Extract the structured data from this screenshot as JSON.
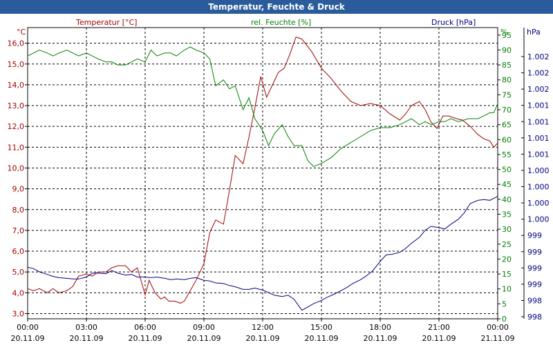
{
  "window": {
    "title": "Temperatur, Feuchte & Druck"
  },
  "chart_data": {
    "type": "line",
    "title": "Temperatur, Feuchte & Druck",
    "x_ticks": [
      {
        "time": "00:00",
        "date": "20.11.09"
      },
      {
        "time": "03:00",
        "date": "20.11.09"
      },
      {
        "time": "06:00",
        "date": "20.11.09"
      },
      {
        "time": "09:00",
        "date": "20.11.09"
      },
      {
        "time": "12:00",
        "date": "20.11.09"
      },
      {
        "time": "15:00",
        "date": "20.11.09"
      },
      {
        "time": "18:00",
        "date": "20.11.09"
      },
      {
        "time": "21:00",
        "date": "20.11.09"
      },
      {
        "time": "00:00",
        "date": "21.11.09"
      }
    ],
    "xlim": [
      0,
      24
    ],
    "grid": true,
    "axes": {
      "temp": {
        "label": "Temperatur [°C]",
        "unit": "°C",
        "color": "#a00000",
        "ylim": [
          2.75,
          16.75
        ],
        "ticks": [
          "3,0",
          "4,0",
          "5,0",
          "6,0",
          "7,0",
          "8,0",
          "9,0",
          "10,0",
          "11,0",
          "12,0",
          "13,0",
          "14,0",
          "15,0",
          "16,0"
        ]
      },
      "hum": {
        "label": "rel. Feuchte [%]",
        "unit": "%",
        "color": "#008000",
        "ylim": [
          0,
          97.5
        ],
        "ticks": [
          "0",
          "5",
          "10",
          "15",
          "20",
          "25",
          "30",
          "35",
          "40",
          "45",
          "50",
          "55",
          "60",
          "65",
          "70",
          "75",
          "80",
          "85",
          "90",
          "95"
        ]
      },
      "press": {
        "label": "Druck [hPa]",
        "unit": "hPa",
        "color": "#000080",
        "ticks": [
          "998",
          "998",
          "999",
          "999",
          "999",
          "999",
          "1.000",
          "1.000",
          "1.000",
          "1.000",
          "1.001",
          "1.001",
          "1.001",
          "1.001",
          "1.002",
          "1.002",
          "1.002"
        ]
      }
    },
    "series": [
      {
        "name": "Temperatur",
        "axis": "temp",
        "color": "#a00000",
        "x": [
          0,
          0.3,
          0.6,
          1,
          1.3,
          1.6,
          2,
          2.3,
          2.6,
          3,
          3.3,
          3.6,
          4,
          4.3,
          4.6,
          5,
          5.3,
          5.6,
          6,
          6.2,
          6.5,
          6.8,
          7,
          7.2,
          7.5,
          7.8,
          8,
          8.3,
          8.6,
          9,
          9.3,
          9.6,
          10,
          10.3,
          10.6,
          11,
          11.3,
          11.6,
          11.9,
          12.2,
          12.5,
          12.8,
          13.1,
          13.4,
          13.7,
          14,
          14.5,
          15,
          15.5,
          16,
          16.5,
          17,
          17.5,
          18,
          18.5,
          19,
          19.3,
          19.6,
          20,
          20.3,
          20.6,
          20.9,
          21.2,
          21.5,
          21.8,
          22.2,
          22.6,
          23,
          23.3,
          23.6,
          23.8,
          24
        ],
        "values": [
          4.2,
          4.1,
          4.2,
          4.0,
          4.2,
          4.0,
          4.1,
          4.3,
          4.8,
          4.9,
          4.8,
          5.0,
          5.0,
          5.2,
          5.3,
          5.3,
          5.0,
          5.2,
          3.9,
          4.6,
          4.0,
          3.7,
          3.8,
          3.6,
          3.6,
          3.5,
          3.6,
          4.1,
          4.6,
          5.4,
          6.9,
          7.5,
          7.3,
          8.9,
          10.6,
          10.2,
          11.5,
          12.9,
          14.4,
          13.4,
          14.0,
          14.6,
          14.8,
          15.5,
          16.3,
          16.2,
          15.6,
          14.8,
          14.3,
          13.7,
          13.2,
          13.0,
          13.1,
          13.0,
          12.6,
          12.3,
          12.6,
          13.0,
          13.2,
          12.8,
          12.2,
          11.9,
          12.5,
          12.5,
          12.4,
          12.3,
          12.0,
          11.6,
          11.4,
          11.3,
          11.0,
          11.2
        ]
      },
      {
        "name": "rel. Feuchte",
        "axis": "hum",
        "color": "#008000",
        "x": [
          0,
          0.3,
          0.6,
          1,
          1.3,
          1.6,
          2,
          2.3,
          2.6,
          3,
          3.3,
          3.6,
          4,
          4.3,
          4.6,
          5,
          5.3,
          5.6,
          6,
          6.3,
          6.6,
          7,
          7.3,
          7.6,
          8,
          8.3,
          8.6,
          9,
          9.3,
          9.6,
          10,
          10.3,
          10.6,
          11,
          11.3,
          11.6,
          12,
          12.3,
          12.6,
          13,
          13.3,
          13.6,
          14,
          14.3,
          14.6,
          15,
          15.5,
          16,
          16.5,
          17,
          17.5,
          18,
          18.5,
          19,
          19.3,
          19.6,
          20,
          20.3,
          20.6,
          21,
          21.3,
          21.6,
          22,
          22.5,
          23,
          23.3,
          23.6,
          23.8,
          24
        ],
        "values": [
          88,
          89,
          90,
          89,
          88,
          89,
          90,
          89,
          88,
          89,
          88,
          87,
          86,
          86,
          85,
          85,
          86,
          87,
          86,
          90,
          88,
          89,
          89,
          88,
          90,
          91,
          90,
          89,
          87,
          78,
          80,
          77,
          78,
          70,
          74,
          67,
          63,
          58,
          62,
          65,
          61,
          58,
          58,
          53,
          51,
          52,
          54,
          57,
          59,
          61,
          63,
          64,
          64,
          65,
          66,
          67,
          65,
          66,
          65,
          66,
          66,
          67,
          66,
          67,
          67,
          68,
          69,
          69,
          72
        ]
      },
      {
        "name": "Druck",
        "axis": "press",
        "color": "#000080",
        "x": [
          0,
          0.3,
          0.6,
          1,
          1.3,
          1.6,
          2,
          2.3,
          2.6,
          3,
          3.3,
          3.6,
          4,
          4.3,
          4.6,
          5,
          5.3,
          5.6,
          6,
          6.3,
          6.6,
          7,
          7.3,
          7.6,
          8,
          8.3,
          8.6,
          9,
          9.3,
          9.6,
          10,
          10.3,
          10.6,
          11,
          11.3,
          11.6,
          12,
          12.3,
          12.6,
          13,
          13.3,
          13.6,
          14,
          14.3,
          14.6,
          15,
          15.3,
          15.6,
          16,
          16.3,
          16.6,
          17,
          17.3,
          17.6,
          18,
          18.3,
          18.6,
          19,
          19.3,
          19.6,
          20,
          20.3,
          20.6,
          21,
          21.3,
          21.6,
          22,
          22.3,
          22.6,
          23,
          23.3,
          23.6,
          24
        ],
        "values": [
          998.81,
          998.79,
          998.74,
          998.7,
          998.67,
          998.65,
          998.64,
          998.63,
          998.63,
          998.66,
          998.72,
          998.72,
          998.71,
          998.76,
          998.72,
          998.69,
          998.7,
          998.66,
          998.66,
          998.65,
          998.66,
          998.64,
          998.62,
          998.63,
          998.62,
          998.64,
          998.65,
          998.61,
          998.6,
          998.57,
          998.56,
          998.53,
          998.51,
          998.47,
          998.47,
          998.49,
          998.46,
          998.42,
          998.38,
          998.36,
          998.38,
          998.32,
          998.15,
          998.2,
          998.25,
          998.3,
          998.35,
          998.39,
          998.45,
          998.5,
          998.56,
          998.62,
          998.68,
          998.75,
          998.9,
          999.0,
          999.01,
          999.04,
          999.1,
          999.18,
          999.27,
          999.38,
          999.44,
          999.42,
          999.4,
          999.47,
          999.55,
          999.65,
          999.79,
          999.84,
          999.85,
          999.84,
          999.9
        ]
      }
    ]
  }
}
